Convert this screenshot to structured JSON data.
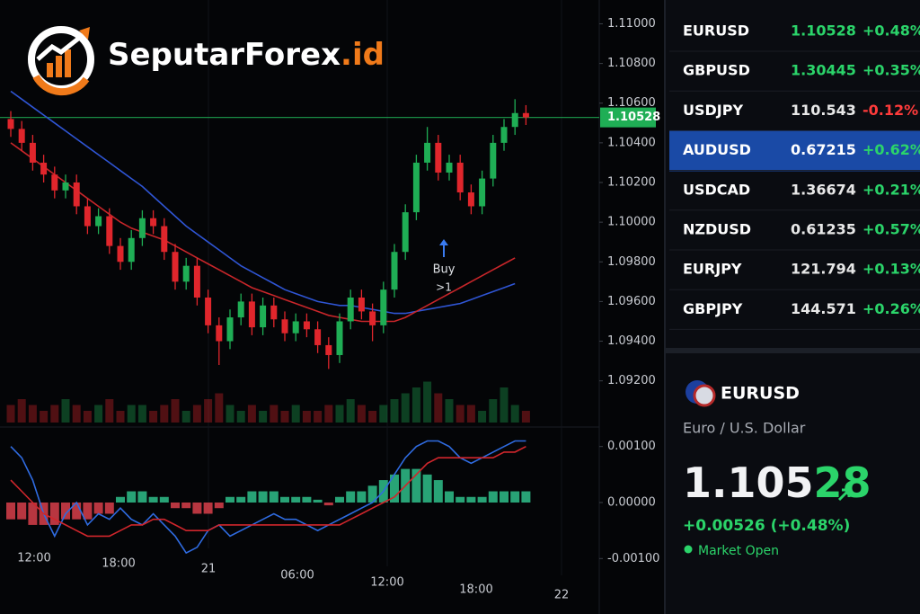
{
  "brand": {
    "name": "SeputarForex",
    "suffix": ".id"
  },
  "price_chart": {
    "type": "candlestick",
    "ylim": [
      1.0899,
      1.1112
    ],
    "yticks": [
      {
        "value": 1.11,
        "label": "1.11000"
      },
      {
        "value": 1.108,
        "label": "1.10800"
      },
      {
        "value": 1.106,
        "label": "1.10600"
      },
      {
        "value": 1.104,
        "label": "1.10400"
      },
      {
        "value": 1.102,
        "label": "1.10200"
      },
      {
        "value": 1.1,
        "label": "1.10000"
      },
      {
        "value": 1.098,
        "label": "1.09800"
      },
      {
        "value": 1.096,
        "label": "1.09600"
      },
      {
        "value": 1.094,
        "label": "1.09400"
      },
      {
        "value": 1.092,
        "label": "1.09200"
      }
    ],
    "up_color": "#1fae55",
    "down_color": "#e0262c",
    "current": {
      "value": 1.10528,
      "label": "1.10528",
      "color": "#1fae55"
    },
    "open": [
      1.1052,
      1.1047,
      1.104,
      1.103,
      1.1024,
      1.1016,
      1.102,
      1.1008,
      1.0998,
      1.1003,
      1.0988,
      1.098,
      1.0992,
      1.1002,
      1.0998,
      1.0985,
      1.097,
      1.0978,
      1.0962,
      1.0948,
      1.094,
      1.0952,
      1.096,
      1.0947,
      1.0958,
      1.0951,
      1.0944,
      1.095,
      1.0946,
      1.0938,
      1.0933,
      1.095,
      1.0962,
      1.0955,
      1.0948,
      1.0966,
      1.0985,
      1.1005,
      1.103,
      1.104,
      1.1025,
      1.103,
      1.1015,
      1.1008,
      1.1022,
      1.104,
      1.1048,
      1.1055
    ],
    "high": [
      1.1056,
      1.1051,
      1.1044,
      1.1034,
      1.1028,
      1.1024,
      1.1024,
      1.1012,
      1.1007,
      1.1007,
      1.0992,
      1.0996,
      1.1006,
      1.1006,
      1.1002,
      1.0989,
      1.0982,
      1.0982,
      1.0966,
      1.0952,
      1.0956,
      1.0964,
      1.0964,
      1.0962,
      1.0962,
      1.0955,
      1.0954,
      1.0954,
      1.095,
      1.0942,
      1.0954,
      1.0966,
      1.0966,
      1.0959,
      1.097,
      1.0989,
      1.1009,
      1.1034,
      1.1048,
      1.1044,
      1.1034,
      1.1034,
      1.1019,
      1.1026,
      1.1044,
      1.1052,
      1.1062,
      1.1059
    ],
    "low": [
      1.1043,
      1.1036,
      1.1026,
      1.102,
      1.1012,
      1.1012,
      1.1004,
      1.0994,
      1.0994,
      1.0984,
      1.0976,
      1.0976,
      1.0988,
      1.0994,
      1.0981,
      1.0966,
      1.0966,
      1.0958,
      1.0944,
      1.0928,
      1.0936,
      1.0948,
      1.0943,
      1.0943,
      1.0947,
      1.094,
      1.094,
      1.0942,
      1.0934,
      1.0926,
      1.0929,
      1.0946,
      1.0951,
      1.094,
      1.0944,
      1.0962,
      1.0981,
      1.1001,
      1.1026,
      1.1021,
      1.1021,
      1.1011,
      1.1004,
      1.1004,
      1.1018,
      1.1036,
      1.1044,
      1.1049
    ],
    "close": [
      1.1047,
      1.104,
      1.103,
      1.1024,
      1.1016,
      1.102,
      1.1008,
      1.0998,
      1.1003,
      1.0988,
      1.098,
      1.0992,
      1.1002,
      1.0998,
      1.0985,
      1.097,
      1.0978,
      1.0962,
      1.0948,
      1.094,
      1.0952,
      1.096,
      1.0947,
      1.0958,
      1.0951,
      1.0944,
      1.095,
      1.0946,
      1.0938,
      1.0933,
      1.095,
      1.0962,
      1.0955,
      1.0948,
      1.0966,
      1.0985,
      1.1005,
      1.103,
      1.104,
      1.1025,
      1.103,
      1.1015,
      1.1008,
      1.1022,
      1.104,
      1.1048,
      1.1055,
      1.10528
    ],
    "series": [
      {
        "color": "#2f55d4",
        "values": [
          1.1066,
          1.1062,
          1.1058,
          1.1054,
          1.105,
          1.1046,
          1.1042,
          1.1038,
          1.1034,
          1.103,
          1.1026,
          1.1022,
          1.1018,
          1.1013,
          1.1008,
          1.1003,
          1.0998,
          1.0994,
          1.099,
          1.0986,
          1.0982,
          1.0978,
          1.0975,
          1.0972,
          1.0969,
          1.0966,
          1.0964,
          1.0962,
          1.096,
          1.0959,
          1.0958,
          1.0958,
          1.0957,
          1.0956,
          1.0955,
          1.0954,
          1.0954,
          1.0955,
          1.0956,
          1.0957,
          1.0958,
          1.0959,
          1.0961,
          1.0963,
          1.0965,
          1.0967,
          1.0969,
          null
        ]
      },
      {
        "color": "#c8262a",
        "values": [
          1.104,
          1.1036,
          1.1032,
          1.1028,
          1.1024,
          1.102,
          1.1016,
          1.1012,
          1.1008,
          1.1004,
          1.1,
          1.0997,
          1.0995,
          1.0993,
          1.0991,
          1.0988,
          1.0985,
          1.0982,
          1.0979,
          1.0976,
          1.0973,
          1.097,
          1.0967,
          1.0965,
          1.0963,
          1.0961,
          1.0959,
          1.0957,
          1.0955,
          1.0953,
          1.0952,
          1.0951,
          1.095,
          1.095,
          1.095,
          1.095,
          1.0952,
          1.0955,
          1.0958,
          1.0961,
          1.0964,
          1.0967,
          1.097,
          1.0973,
          1.0976,
          1.0979,
          1.0982,
          null
        ]
      }
    ],
    "annotations": [
      "Buy",
      ">1"
    ],
    "volume": [
      3,
      4,
      3,
      2,
      3,
      4,
      3,
      2,
      3,
      4,
      2,
      3,
      3,
      2,
      3,
      4,
      2,
      3,
      4,
      5,
      3,
      2,
      3,
      2,
      3,
      2,
      3,
      2,
      2,
      3,
      3,
      4,
      3,
      2,
      3,
      4,
      5,
      6,
      7,
      5,
      4,
      3,
      3,
      2,
      4,
      6,
      3,
      2
    ],
    "time_labels": [
      "12:00",
      "18:00",
      "21",
      "06:00",
      "12:00",
      "18:00",
      "22"
    ]
  },
  "macd": {
    "ylim": [
      -0.0013,
      0.0013
    ],
    "yticks": [
      {
        "value": 0.001,
        "label": "0.00100"
      },
      {
        "value": 0,
        "label": "0.00000"
      },
      {
        "value": -0.001,
        "label": "-0.00100"
      }
    ],
    "histogram": {
      "up_color": "#2fbf8a",
      "down_color": "#d8404a",
      "values": [
        -0.0003,
        -0.0003,
        -0.0004,
        -0.0004,
        -0.0004,
        -0.0003,
        -0.0003,
        -0.0003,
        -0.0002,
        -0.0002,
        0.0001,
        0.0002,
        0.0002,
        0.0001,
        0.0001,
        -0.0001,
        -0.0001,
        -0.0002,
        -0.0002,
        -0.0001,
        0.0001,
        0.0001,
        0.0002,
        0.0002,
        0.0002,
        0.0001,
        0.0001,
        0.0001,
        5e-05,
        -5e-05,
        0.0001,
        0.0002,
        0.0002,
        0.0003,
        0.0004,
        0.0005,
        0.0006,
        0.0006,
        0.0005,
        0.0004,
        0.0002,
        0.0001,
        0.0001,
        0.0001,
        0.0002,
        0.0002,
        0.0002,
        0.0002
      ]
    },
    "series": [
      {
        "color": "#2f6be0",
        "values": [
          0.001,
          0.0008,
          0.0004,
          -0.0002,
          -0.0006,
          -0.0002,
          0.0,
          -0.0004,
          -0.0002,
          -0.0003,
          -0.0001,
          -0.0003,
          -0.0004,
          -0.0002,
          -0.0004,
          -0.0006,
          -0.0009,
          -0.0008,
          -0.0005,
          -0.0004,
          -0.0006,
          -0.0005,
          -0.0004,
          -0.0003,
          -0.0002,
          -0.0003,
          -0.0003,
          -0.0004,
          -0.0005,
          -0.0004,
          -0.0003,
          -0.0002,
          -0.0001,
          0.0,
          0.0002,
          0.0005,
          0.0008,
          0.001,
          0.0011,
          0.0011,
          0.001,
          0.0008,
          0.0007,
          0.0008,
          0.0009,
          0.001,
          0.0011,
          0.0011
        ]
      },
      {
        "color": "#d0262c",
        "values": [
          0.0004,
          0.0002,
          0.0,
          -0.0002,
          -0.0003,
          -0.0004,
          -0.0005,
          -0.0006,
          -0.0006,
          -0.0006,
          -0.0005,
          -0.0004,
          -0.0004,
          -0.0003,
          -0.0003,
          -0.0004,
          -0.0005,
          -0.0005,
          -0.0005,
          -0.0004,
          -0.0004,
          -0.0004,
          -0.0004,
          -0.0004,
          -0.0004,
          -0.0004,
          -0.0004,
          -0.0004,
          -0.0004,
          -0.0004,
          -0.0004,
          -0.0003,
          -0.0002,
          -0.0001,
          0.0,
          0.0001,
          0.0003,
          0.0005,
          0.0007,
          0.0008,
          0.0008,
          0.0008,
          0.0008,
          0.0008,
          0.0008,
          0.0009,
          0.0009,
          0.001
        ]
      }
    ]
  },
  "watchlist": {
    "selected": 3,
    "rows": [
      {
        "symbol": "EURUSD",
        "price": "1.10528",
        "change": "+0.48%",
        "price_color": "#2bd46a"
      },
      {
        "symbol": "GBPUSD",
        "price": "1.30445",
        "change": "+0.35%",
        "price_color": "#2bd46a"
      },
      {
        "symbol": "USDJPY",
        "price": "110.543",
        "change": "-0.12%",
        "price_color": "#e8e8e8"
      },
      {
        "symbol": "AUDUSD",
        "price": "0.67215",
        "change": "+0.62%",
        "price_color": "#ffffff"
      },
      {
        "symbol": "USDCAD",
        "price": "1.36674",
        "change": "+0.21%",
        "price_color": "#e8e8e8"
      },
      {
        "symbol": "NZDUSD",
        "price": "0.61235",
        "change": "+0.57%",
        "price_color": "#e8e8e8"
      },
      {
        "symbol": "EURJPY",
        "price": "121.794",
        "change": "+0.13%",
        "price_color": "#e8e8e8"
      },
      {
        "symbol": "GBPJPY",
        "price": "144.571",
        "change": "+0.26%",
        "price_color": "#e8e8e8"
      }
    ]
  },
  "detail": {
    "symbol": "EURUSD",
    "description": "Euro / U.S. Dollar",
    "price_main": "1.105",
    "price_pips": "28",
    "change": "+0.00526 (+0.48%)",
    "status": "Market Open"
  }
}
